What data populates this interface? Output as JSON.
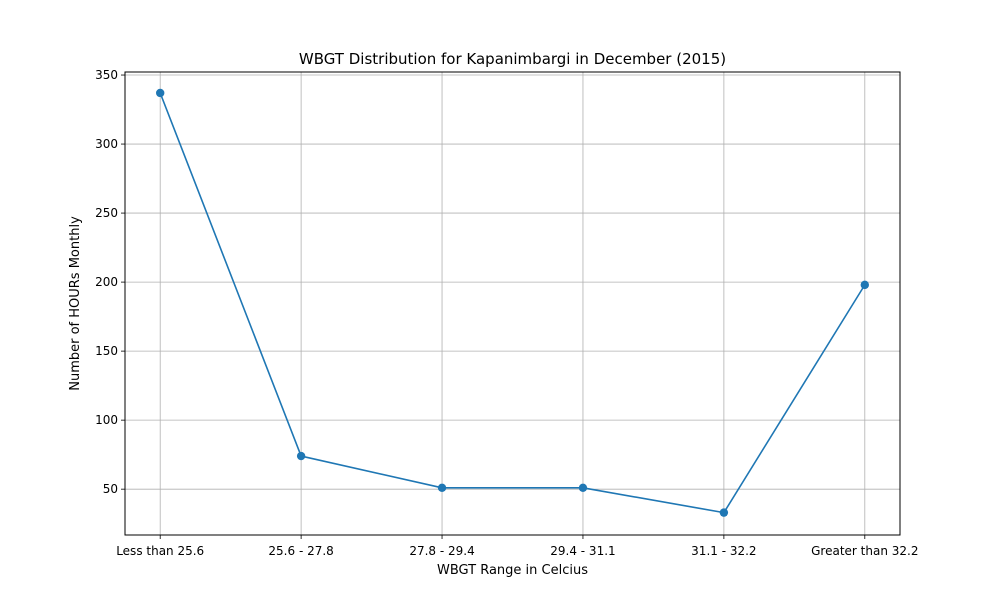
{
  "chart_data": {
    "type": "line",
    "title": "WBGT Distribution for Kapanimbargi in December (2015)",
    "xlabel": "WBGT Range in Celcius",
    "ylabel": "Number of HOURs Monthly",
    "categories": [
      "Less than 25.6",
      "25.6 - 27.8",
      "27.8 - 29.4",
      "29.4 - 31.1",
      "31.1 - 32.2",
      "Greater than 32.2"
    ],
    "series": [
      {
        "values": [
          337,
          74,
          51,
          51,
          33,
          198
        ],
        "color": "#1f77b4",
        "marker": "circle"
      }
    ],
    "ylim": [
      16.8,
      352.2
    ],
    "yticks": [
      50,
      100,
      150,
      200,
      250,
      300,
      350
    ],
    "grid": true,
    "legend": "none"
  }
}
